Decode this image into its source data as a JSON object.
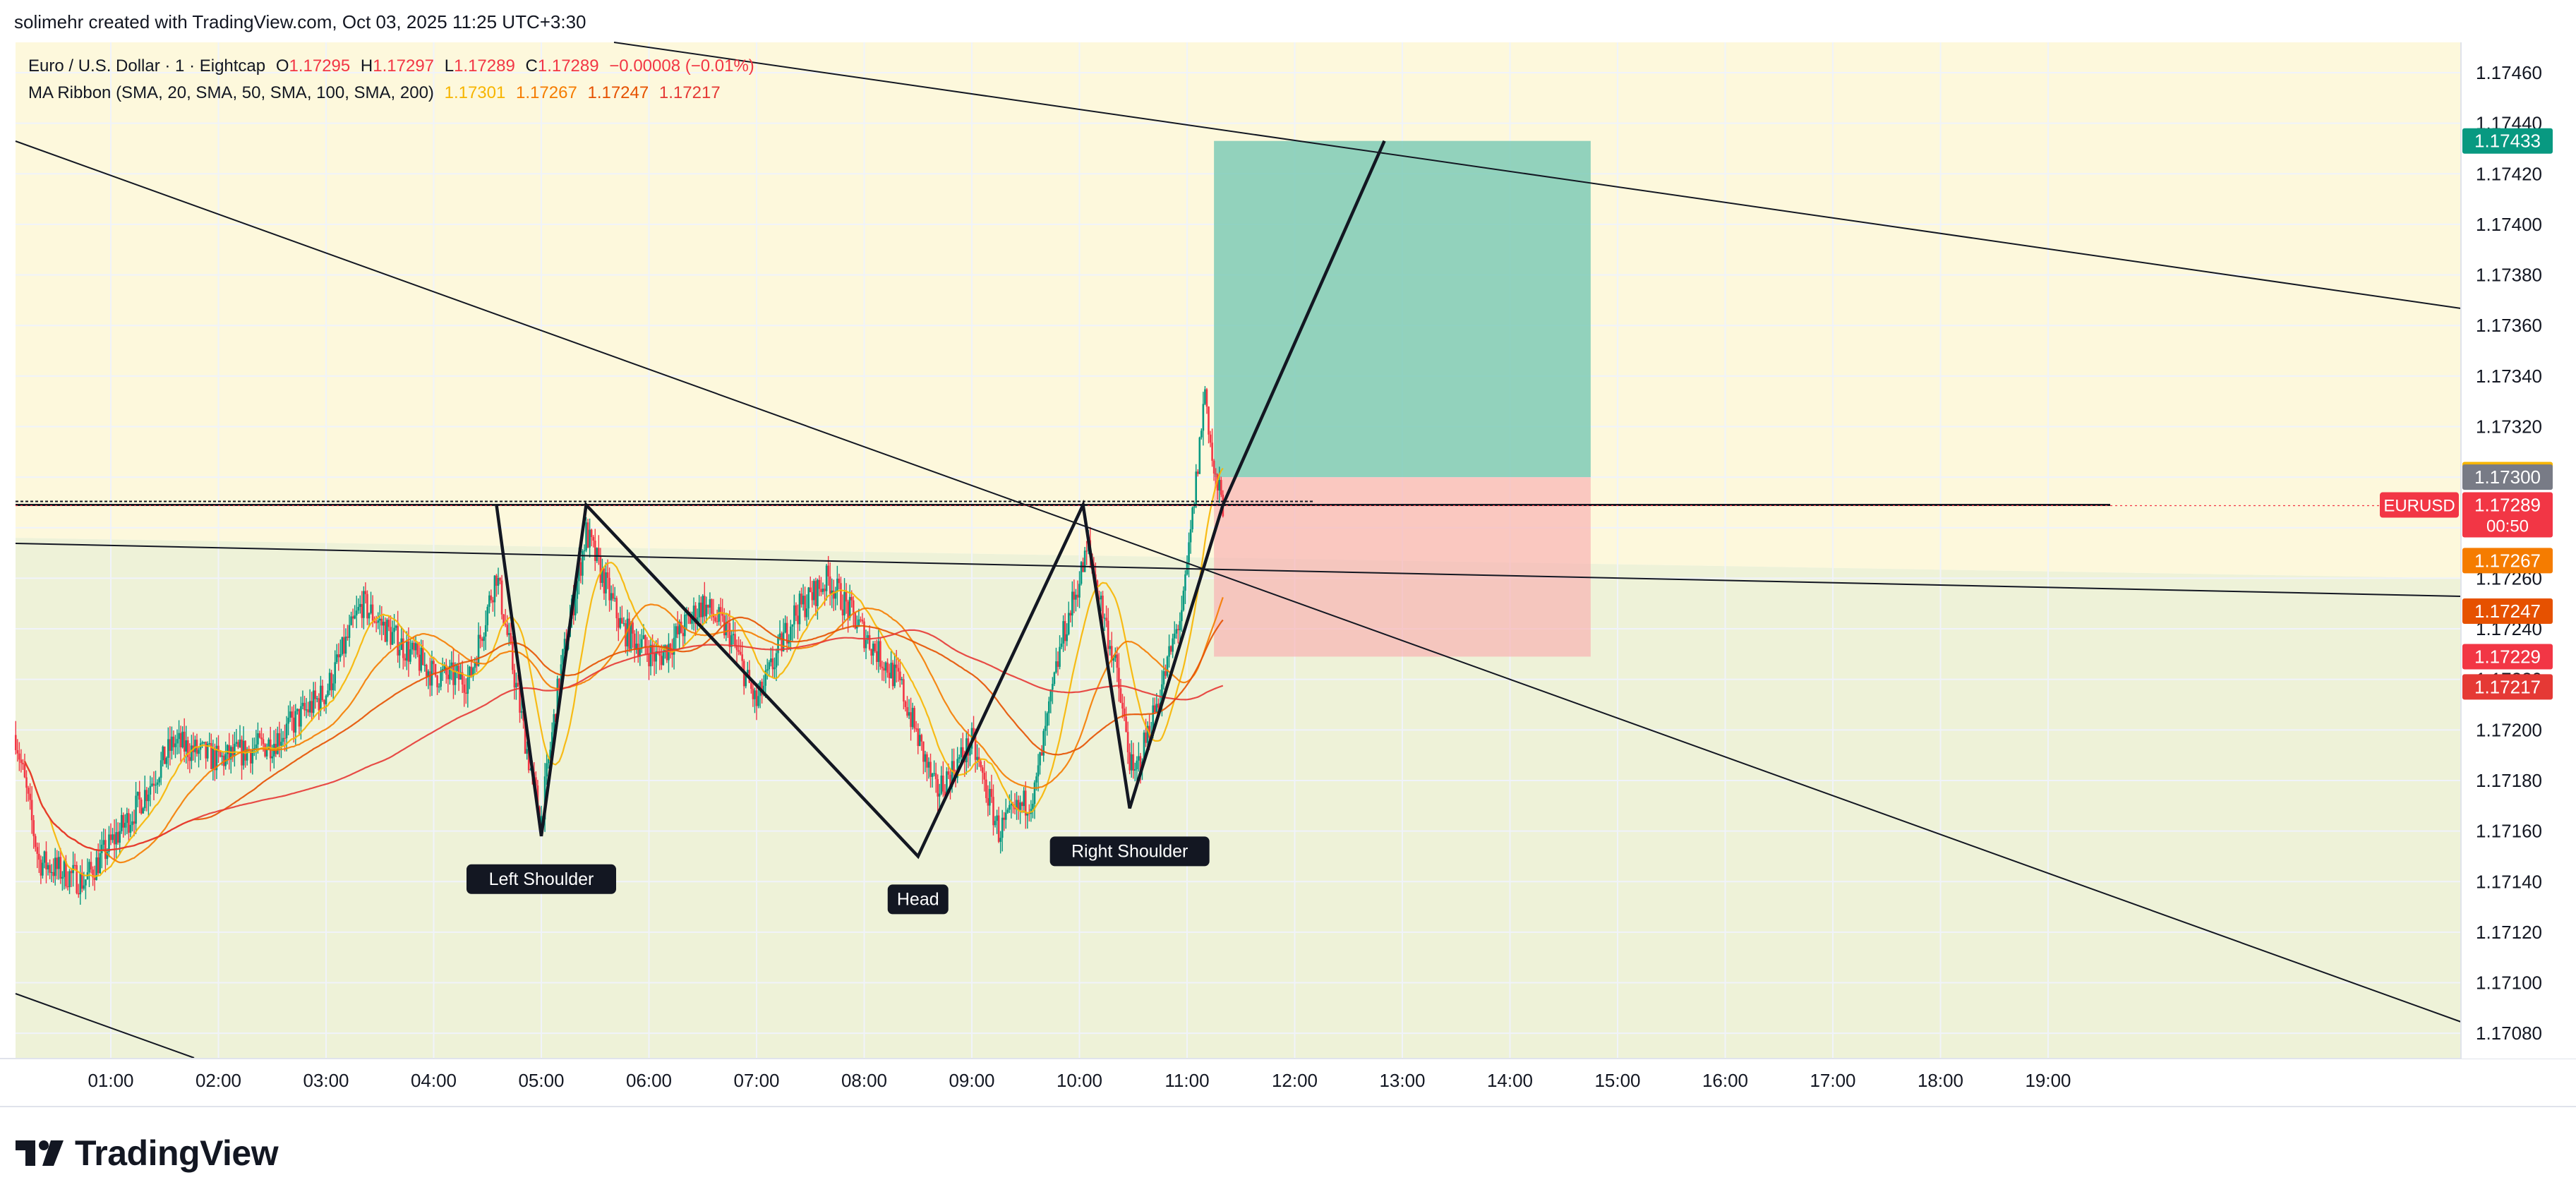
{
  "header": {
    "credit": "solimehr created with TradingView.com, Oct 03, 2025 11:25 UTC+3:30"
  },
  "legend": {
    "symbol": "Euro / U.S. Dollar · 1 · Eightcap",
    "o_label": "O",
    "o_value": "1.17295",
    "h_label": "H",
    "h_value": "1.17297",
    "l_label": "L",
    "l_value": "1.17289",
    "c_label": "C",
    "c_value": "1.17289",
    "change": "−0.00008 (−0.01%)",
    "ma_label": "MA Ribbon (SMA, 20, SMA, 50, SMA, 100, SMA, 200)",
    "ma_values": [
      "1.17301",
      "1.17267",
      "1.17247",
      "1.17217"
    ]
  },
  "brand": {
    "name": "TradingView"
  },
  "colors": {
    "up": "#089981",
    "down": "#f23645",
    "ma20": "#f7b500",
    "ma50": "#f57c00",
    "ma100": "#e65100",
    "ma200": "#e53935",
    "target_zone": "#7fcbb6",
    "stop_zone": "#f8b3b3",
    "upper_zone": "#fdf8dc",
    "lower_zone": "#eef2d8"
  },
  "chart_data": {
    "type": "candlestick",
    "timeframe": "1",
    "x_tick_labels": [
      "01:00",
      "02:00",
      "03:00",
      "04:00",
      "05:00",
      "06:00",
      "07:00",
      "08:00",
      "09:00",
      "10:00",
      "11:00",
      "12:00",
      "13:00",
      "14:00",
      "15:00",
      "16:00",
      "17:00",
      "18:00",
      "19:00"
    ],
    "y_tick_labels": [
      "1.17460",
      "1.17440",
      "1.17420",
      "1.17400",
      "1.17380",
      "1.17360",
      "1.17340",
      "1.17320",
      "1.17300",
      "1.17280",
      "1.17260",
      "1.17240",
      "1.17220",
      "1.17200",
      "1.17180",
      "1.17160",
      "1.17140",
      "1.17120",
      "1.17100",
      "1.17080"
    ],
    "ylim": [
      1.1707,
      1.17472
    ],
    "grid": true,
    "price_trajectory": [
      [
        "00:07",
        1.17198
      ],
      [
        "00:20",
        1.17148
      ],
      [
        "00:45",
        1.1714
      ],
      [
        "01:15",
        1.1717
      ],
      [
        "01:35",
        1.17195
      ],
      [
        "02:00",
        1.17188
      ],
      [
        "02:30",
        1.17195
      ],
      [
        "03:00",
        1.17215
      ],
      [
        "03:20",
        1.1725
      ],
      [
        "03:40",
        1.17235
      ],
      [
        "04:00",
        1.17222
      ],
      [
        "04:20",
        1.1722
      ],
      [
        "04:35",
        1.17262
      ],
      [
        "04:55",
        1.1718
      ],
      [
        "05:00",
        1.17165
      ],
      [
        "05:10",
        1.1722
      ],
      [
        "05:25",
        1.17278
      ],
      [
        "05:45",
        1.1724
      ],
      [
        "06:05",
        1.17228
      ],
      [
        "06:30",
        1.1725
      ],
      [
        "06:45",
        1.17238
      ],
      [
        "07:00",
        1.1721
      ],
      [
        "07:20",
        1.17245
      ],
      [
        "07:40",
        1.1726
      ],
      [
        "08:00",
        1.17238
      ],
      [
        "08:20",
        1.17218
      ],
      [
        "08:40",
        1.17175
      ],
      [
        "09:00",
        1.17195
      ],
      [
        "09:15",
        1.1716
      ],
      [
        "09:35",
        1.17175
      ],
      [
        "09:50",
        1.17235
      ],
      [
        "10:05",
        1.17272
      ],
      [
        "10:20",
        1.17225
      ],
      [
        "10:30",
        1.1718
      ],
      [
        "10:45",
        1.17215
      ],
      [
        "10:58",
        1.1725
      ],
      [
        "11:05",
        1.17298
      ],
      [
        "11:10",
        1.17335
      ],
      [
        "11:15",
        1.173
      ],
      [
        "11:20",
        1.17289
      ]
    ],
    "moving_averages": [
      {
        "name": "SMA 20",
        "last": 1.17301
      },
      {
        "name": "SMA 50",
        "last": 1.17267
      },
      {
        "name": "SMA 100",
        "last": 1.17247
      },
      {
        "name": "SMA 200",
        "last": 1.17217
      }
    ],
    "pattern_labels": [
      "Left Shoulder",
      "Head",
      "Right Shoulder"
    ],
    "pattern_points": [
      {
        "label": "Left Shoulder",
        "time": "05:00",
        "price": 1.17158
      },
      {
        "label": "Head",
        "time": "08:30",
        "price": 1.1715
      },
      {
        "label": "Right Shoulder",
        "time": "10:28",
        "price": 1.17169
      }
    ],
    "neckline": 1.17289,
    "long_position": {
      "entry": 1.173,
      "target": 1.17433,
      "stop": 1.17229,
      "start_time": "11:15",
      "end_time": "14:45"
    },
    "price_axis_labels": [
      {
        "text": "1.17433",
        "value": 1.17433,
        "color": "#089981"
      },
      {
        "text": "1.17301",
        "value": 1.17301,
        "color": "#f7b500"
      },
      {
        "text": "1.17300",
        "value": 1.173,
        "color": "#787b86"
      },
      {
        "text": "1.17289",
        "value": 1.17289,
        "color": "#f23645"
      },
      {
        "text": "1.17267",
        "value": 1.17267,
        "color": "#f57c00"
      },
      {
        "text": "1.17247",
        "value": 1.17247,
        "color": "#e65100"
      },
      {
        "text": "1.17229",
        "value": 1.17229,
        "color": "#f23645"
      },
      {
        "text": "1.17217",
        "value": 1.17217,
        "color": "#e53935"
      }
    ],
    "symbol_tag": "EURUSD",
    "countdown": "00:50"
  }
}
